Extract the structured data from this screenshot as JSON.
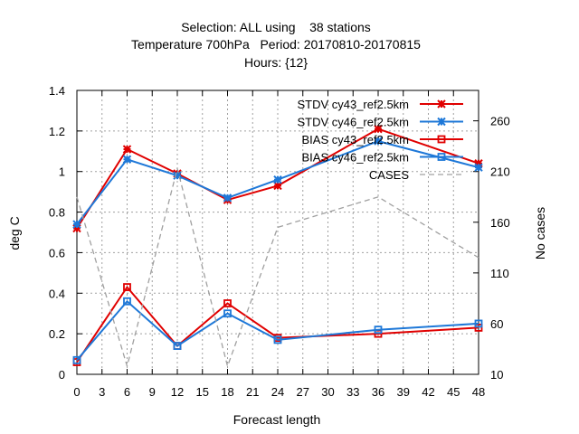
{
  "chart_data": {
    "type": "line",
    "title_lines": [
      "Selection: ALL using    38 stations",
      "Temperature 700hPa   Period: 20170810-20170815",
      "Hours: {12}"
    ],
    "xlabel": "Forecast length",
    "ylabel": "deg C",
    "y2label": "No cases",
    "xlim": [
      0,
      48
    ],
    "ylim": [
      0,
      1.4
    ],
    "y2lim": [
      10,
      290
    ],
    "x_ticks": [
      0,
      3,
      6,
      9,
      12,
      15,
      18,
      21,
      24,
      27,
      30,
      33,
      36,
      39,
      42,
      45,
      48
    ],
    "y_ticks": [
      "0",
      "0.2",
      "0.4",
      "0.6",
      "0.8",
      "1",
      "1.2",
      "1.4"
    ],
    "y_tick_values": [
      0,
      0.2,
      0.4,
      0.6,
      0.8,
      1.0,
      1.2,
      1.4
    ],
    "y2_ticks": [
      10,
      60,
      110,
      160,
      210,
      260
    ],
    "grid": true,
    "legend_position": "top-right",
    "series": [
      {
        "name": "STDV cy43_ref2.5km",
        "color": "#e00000",
        "marker": "star",
        "axis": "y1",
        "x": [
          0,
          6,
          12,
          18,
          24,
          36,
          48
        ],
        "values": [
          0.72,
          1.11,
          0.99,
          0.86,
          0.93,
          1.21,
          1.04
        ]
      },
      {
        "name": "STDV cy46_ref2.5km",
        "color": "#1e78d8",
        "marker": "star",
        "axis": "y1",
        "x": [
          0,
          6,
          12,
          18,
          24,
          36,
          48
        ],
        "values": [
          0.74,
          1.06,
          0.98,
          0.87,
          0.96,
          1.15,
          1.02
        ]
      },
      {
        "name": "BIAS cy43_ref2.5km",
        "color": "#e00000",
        "marker": "square",
        "axis": "y1",
        "x": [
          0,
          6,
          12,
          18,
          24,
          36,
          48
        ],
        "values": [
          0.06,
          0.43,
          0.14,
          0.35,
          0.18,
          0.2,
          0.23
        ]
      },
      {
        "name": "BIAS cy46_ref2.5km",
        "color": "#1e78d8",
        "marker": "square",
        "axis": "y1",
        "x": [
          0,
          6,
          12,
          18,
          24,
          36,
          48
        ],
        "values": [
          0.07,
          0.36,
          0.14,
          0.3,
          0.17,
          0.22,
          0.25
        ]
      },
      {
        "name": "CASES",
        "color": "#a0a0a0",
        "marker": "none",
        "dashed": true,
        "axis": "y2",
        "x": [
          0,
          6,
          12,
          18,
          24,
          36,
          48
        ],
        "values": [
          185,
          18,
          213,
          18,
          155,
          185,
          125
        ]
      }
    ]
  }
}
